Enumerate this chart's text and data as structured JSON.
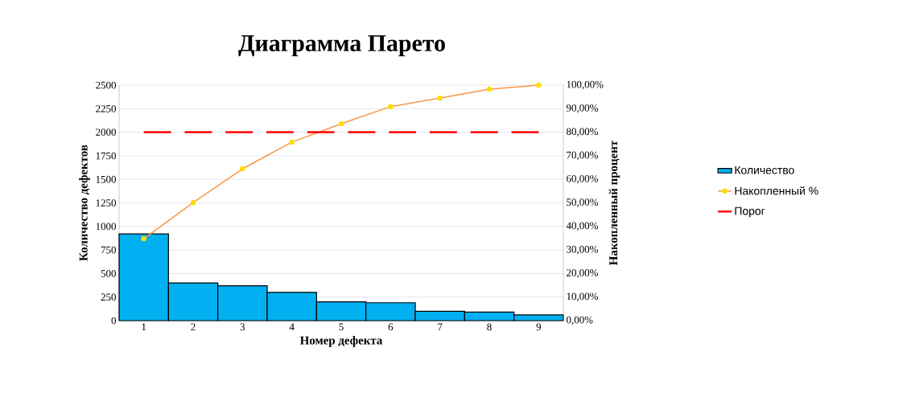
{
  "chart_data": {
    "type": "bar",
    "title": "Диаграмма  Парето",
    "xlabel": "Номер дефекта",
    "ylabel": "Количество дефектов",
    "y2label": "Накопленный процент",
    "categories": [
      "1",
      "2",
      "3",
      "4",
      "5",
      "6",
      "7",
      "8",
      "9"
    ],
    "series": [
      {
        "name": "Количество",
        "color": "#00b0f0",
        "values": [
          920,
          400,
          370,
          300,
          200,
          190,
          100,
          90,
          60
        ]
      },
      {
        "name": "Накопленный %",
        "type": "line",
        "axis": "y2",
        "color": "#f79646",
        "marker": "circle",
        "values": [
          34.8,
          50.1,
          64.5,
          75.8,
          83.6,
          90.9,
          94.5,
          98.3,
          100
        ]
      },
      {
        "name": "Порог",
        "type": "line",
        "axis": "y2",
        "color": "#ff0000",
        "line_style": "dashed",
        "marker": "none",
        "values": [
          80,
          80,
          80,
          80,
          80,
          80,
          80,
          80,
          80
        ]
      }
    ],
    "ylim": [
      0,
      2500
    ],
    "yticks": [
      0,
      250,
      500,
      750,
      1000,
      1250,
      1500,
      1750,
      2000,
      2250,
      2500
    ],
    "y2lim": [
      0,
      100
    ],
    "y2ticks": [
      {
        "value": 0,
        "label": "0,00%"
      },
      {
        "value": 10,
        "label": "10,00%"
      },
      {
        "value": 20,
        "label": "20,00%"
      },
      {
        "value": 30,
        "label": "30,00%"
      },
      {
        "value": 40,
        "label": "40,00%"
      },
      {
        "value": 50,
        "label": "50,00%"
      },
      {
        "value": 60,
        "label": "60,00%"
      },
      {
        "value": 70,
        "label": "70,00%"
      },
      {
        "value": 80,
        "label": "80,00%"
      },
      {
        "value": 90,
        "label": "90,00%"
      },
      {
        "value": 100,
        "label": "100,00%"
      }
    ],
    "grid": "y",
    "legend": "right"
  }
}
